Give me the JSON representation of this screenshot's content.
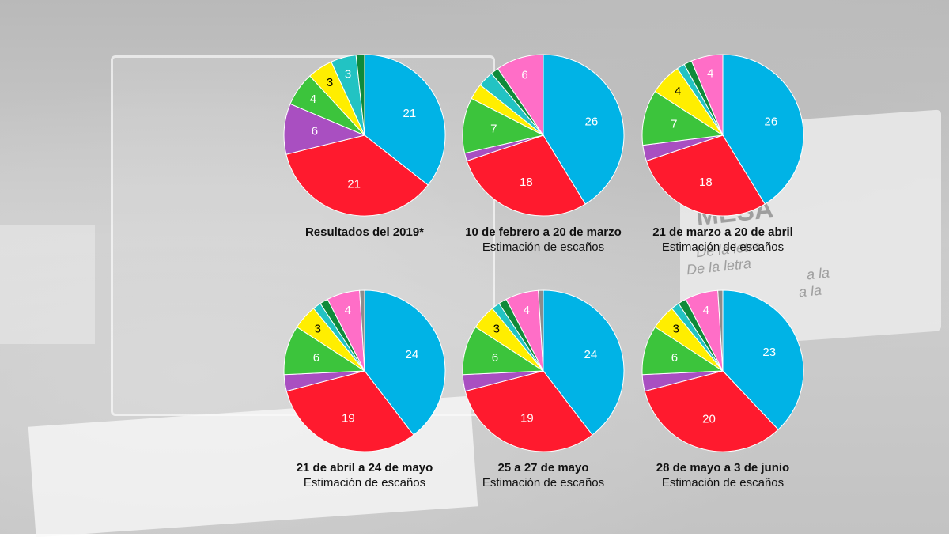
{
  "chart_data": [
    {
      "type": "pie",
      "title": "Resultados del 2019*",
      "subtitle": "",
      "slices": [
        {
          "value": 21,
          "color": "#00b3e6",
          "label": "21",
          "label_color": "#ffffff"
        },
        {
          "value": 21,
          "color": "#ff1a2e",
          "label": "21",
          "label_color": "#ffffff"
        },
        {
          "value": 6,
          "color": "#a94fc1",
          "label": "6",
          "label_color": "#ffffff"
        },
        {
          "value": 4,
          "color": "#3cc43c",
          "label": "4",
          "label_color": "#ffffff"
        },
        {
          "value": 3,
          "color": "#ffee00",
          "label": "3",
          "label_color": "#000000"
        },
        {
          "value": 3,
          "color": "#22c3c3",
          "label": "3",
          "label_color": "#ffffff"
        },
        {
          "value": 1,
          "color": "#0f8a3a",
          "label": "",
          "label_color": "#ffffff"
        }
      ]
    },
    {
      "type": "pie",
      "title": "10 de febrero a 20 de marzo",
      "subtitle": "Estimación de escaños",
      "slices": [
        {
          "value": 26,
          "color": "#00b3e6",
          "label": "26",
          "label_color": "#ffffff"
        },
        {
          "value": 18,
          "color": "#ff1a2e",
          "label": "18",
          "label_color": "#ffffff"
        },
        {
          "value": 1,
          "color": "#a94fc1",
          "label": "",
          "label_color": "#ffffff"
        },
        {
          "value": 7,
          "color": "#3cc43c",
          "label": "7",
          "label_color": "#ffffff"
        },
        {
          "value": 2,
          "color": "#ffee00",
          "label": "",
          "label_color": "#000000"
        },
        {
          "value": 2,
          "color": "#22c3c3",
          "label": "",
          "label_color": "#ffffff"
        },
        {
          "value": 1,
          "color": "#0f8a3a",
          "label": "",
          "label_color": "#ffffff"
        },
        {
          "value": 6,
          "color": "#ff6ec7",
          "label": "6",
          "label_color": "#ffffff"
        }
      ]
    },
    {
      "type": "pie",
      "title": "21 de marzo a 20 de abril",
      "subtitle": "Estimación de escaños",
      "slices": [
        {
          "value": 26,
          "color": "#00b3e6",
          "label": "26",
          "label_color": "#ffffff"
        },
        {
          "value": 18,
          "color": "#ff1a2e",
          "label": "18",
          "label_color": "#ffffff"
        },
        {
          "value": 2,
          "color": "#a94fc1",
          "label": "",
          "label_color": "#ffffff"
        },
        {
          "value": 7,
          "color": "#3cc43c",
          "label": "7",
          "label_color": "#ffffff"
        },
        {
          "value": 4,
          "color": "#ffee00",
          "label": "4",
          "label_color": "#000000"
        },
        {
          "value": 1,
          "color": "#22c3c3",
          "label": "",
          "label_color": "#ffffff"
        },
        {
          "value": 1,
          "color": "#0f8a3a",
          "label": "",
          "label_color": "#ffffff"
        },
        {
          "value": 4,
          "color": "#ff6ec7",
          "label": "4",
          "label_color": "#ffffff"
        }
      ]
    },
    {
      "type": "pie",
      "title": "21 de abril a 24 de mayo",
      "subtitle": "Estimación de escaños",
      "slices": [
        {
          "value": 24,
          "color": "#00b3e6",
          "label": "24",
          "label_color": "#ffffff"
        },
        {
          "value": 19,
          "color": "#ff1a2e",
          "label": "19",
          "label_color": "#ffffff"
        },
        {
          "value": 2,
          "color": "#a94fc1",
          "label": "",
          "label_color": "#ffffff"
        },
        {
          "value": 6,
          "color": "#3cc43c",
          "label": "6",
          "label_color": "#ffffff"
        },
        {
          "value": 3,
          "color": "#ffee00",
          "label": "3",
          "label_color": "#000000"
        },
        {
          "value": 1,
          "color": "#22c3c3",
          "label": "",
          "label_color": "#ffffff"
        },
        {
          "value": 1,
          "color": "#0f8a3a",
          "label": "",
          "label_color": "#ffffff"
        },
        {
          "value": 4,
          "color": "#ff6ec7",
          "label": "4",
          "label_color": "#ffffff"
        },
        {
          "value": 0.6,
          "color": "#8c8c8c",
          "label": "",
          "label_color": "#ffffff"
        }
      ]
    },
    {
      "type": "pie",
      "title": "25 a 27 de mayo",
      "subtitle": "Estimación de escaños",
      "slices": [
        {
          "value": 24,
          "color": "#00b3e6",
          "label": "24",
          "label_color": "#ffffff"
        },
        {
          "value": 19,
          "color": "#ff1a2e",
          "label": "19",
          "label_color": "#ffffff"
        },
        {
          "value": 2,
          "color": "#a94fc1",
          "label": "",
          "label_color": "#ffffff"
        },
        {
          "value": 6,
          "color": "#3cc43c",
          "label": "6",
          "label_color": "#ffffff"
        },
        {
          "value": 3,
          "color": "#ffee00",
          "label": "3",
          "label_color": "#000000"
        },
        {
          "value": 1,
          "color": "#22c3c3",
          "label": "",
          "label_color": "#ffffff"
        },
        {
          "value": 1,
          "color": "#0f8a3a",
          "label": "",
          "label_color": "#ffffff"
        },
        {
          "value": 4,
          "color": "#ff6ec7",
          "label": "4",
          "label_color": "#ffffff"
        },
        {
          "value": 0.6,
          "color": "#8c8c8c",
          "label": "",
          "label_color": "#ffffff"
        }
      ]
    },
    {
      "type": "pie",
      "title": "28 de mayo a 3 de junio",
      "subtitle": "Estimación de escaños",
      "slices": [
        {
          "value": 23,
          "color": "#00b3e6",
          "label": "23",
          "label_color": "#ffffff"
        },
        {
          "value": 20,
          "color": "#ff1a2e",
          "label": "20",
          "label_color": "#ffffff"
        },
        {
          "value": 2,
          "color": "#a94fc1",
          "label": "",
          "label_color": "#ffffff"
        },
        {
          "value": 6,
          "color": "#3cc43c",
          "label": "6",
          "label_color": "#ffffff"
        },
        {
          "value": 3,
          "color": "#ffee00",
          "label": "3",
          "label_color": "#000000"
        },
        {
          "value": 1,
          "color": "#22c3c3",
          "label": "",
          "label_color": "#ffffff"
        },
        {
          "value": 1,
          "color": "#0f8a3a",
          "label": "",
          "label_color": "#ffffff"
        },
        {
          "value": 4,
          "color": "#ff6ec7",
          "label": "4",
          "label_color": "#ffffff"
        },
        {
          "value": 0.6,
          "color": "#8c8c8c",
          "label": "",
          "label_color": "#ffffff"
        }
      ]
    }
  ],
  "background": {
    "sign_text": [
      "MESA",
      "De la letra",
      "De la letra",
      "a la",
      "a la"
    ]
  }
}
